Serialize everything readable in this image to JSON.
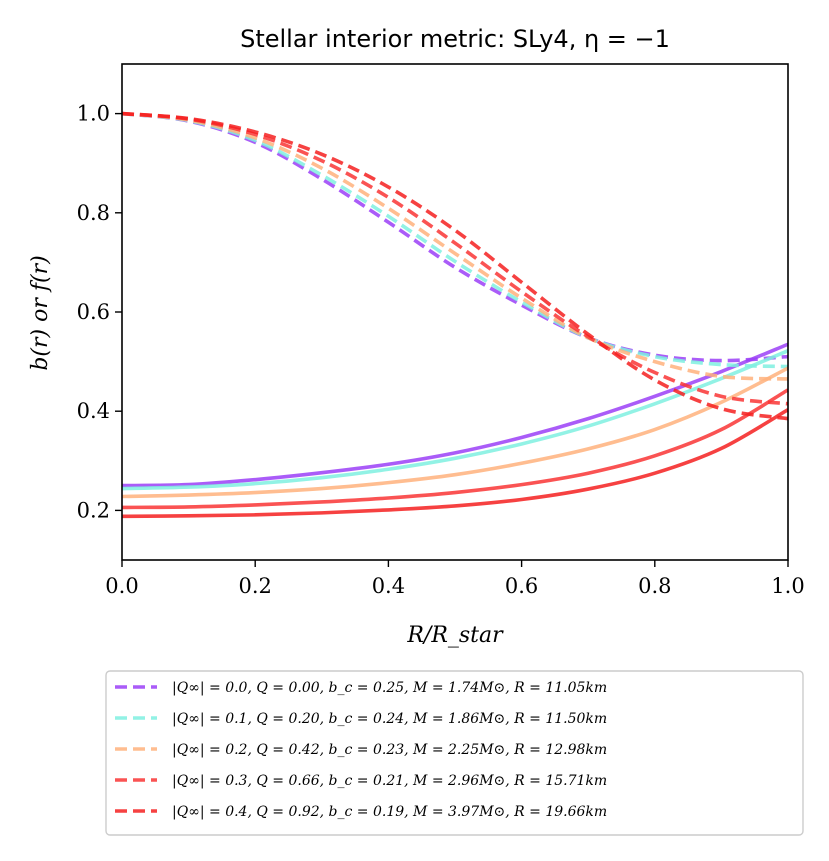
{
  "chart_data": {
    "type": "line",
    "title": "Stellar interior metric: SLy4, η = −1",
    "xlabel": "R/R_star",
    "ylabel": "b(r) or f(r)",
    "xlim": [
      0.0,
      1.0
    ],
    "ylim": [
      0.1,
      1.1
    ],
    "xticks": [
      "0.0",
      "0.2",
      "0.4",
      "0.6",
      "0.8",
      "1.0"
    ],
    "yticks": [
      "0.2",
      "0.4",
      "0.6",
      "0.8",
      "1.0"
    ],
    "legend_location": "below",
    "series": [
      {
        "name": "|Q∞| = 0.0, Q = 0.00, b_c = 0.25, M = 1.74M⊙, R = 11.05km",
        "color": "#9b40f7",
        "x": [
          0,
          0.1,
          0.2,
          0.3,
          0.4,
          0.5,
          0.6,
          0.7,
          0.8,
          0.9,
          1.0
        ],
        "b": [
          0.25,
          0.252,
          0.262,
          0.276,
          0.293,
          0.316,
          0.347,
          0.385,
          0.43,
          0.48,
          0.535
        ],
        "f": [
          1.0,
          0.985,
          0.942,
          0.868,
          0.781,
          0.69,
          0.614,
          0.548,
          0.513,
          0.502,
          0.51
        ]
      },
      {
        "name": "|Q∞| = 0.1, Q = 0.20, b_c = 0.24, M = 1.86M⊙, R = 11.50km",
        "color": "#7ff0e0",
        "x": [
          0,
          0.1,
          0.2,
          0.3,
          0.4,
          0.5,
          0.6,
          0.7,
          0.8,
          0.9,
          1.0
        ],
        "b": [
          0.244,
          0.247,
          0.254,
          0.266,
          0.283,
          0.305,
          0.334,
          0.37,
          0.415,
          0.466,
          0.522
        ],
        "f": [
          1.0,
          0.986,
          0.946,
          0.876,
          0.793,
          0.702,
          0.62,
          0.548,
          0.51,
          0.494,
          0.49
        ]
      },
      {
        "name": "|Q∞| = 0.2, Q = 0.42, b_c = 0.23, M = 2.25M⊙, R = 12.98km",
        "color": "#ffb27d",
        "x": [
          0,
          0.1,
          0.2,
          0.3,
          0.4,
          0.5,
          0.6,
          0.7,
          0.8,
          0.9,
          1.0
        ],
        "b": [
          0.228,
          0.231,
          0.236,
          0.244,
          0.256,
          0.272,
          0.295,
          0.324,
          0.363,
          0.418,
          0.487
        ],
        "f": [
          1.0,
          0.987,
          0.951,
          0.89,
          0.809,
          0.718,
          0.628,
          0.548,
          0.5,
          0.47,
          0.465
        ]
      },
      {
        "name": "|Q∞| = 0.3, Q = 0.66, b_c = 0.21, M = 2.96M⊙, R = 15.71km",
        "color": "#f93535",
        "x": [
          0,
          0.1,
          0.2,
          0.3,
          0.4,
          0.5,
          0.6,
          0.7,
          0.8,
          0.9,
          1.0
        ],
        "b": [
          0.206,
          0.207,
          0.211,
          0.217,
          0.225,
          0.236,
          0.252,
          0.275,
          0.31,
          0.363,
          0.443
        ],
        "f": [
          1.0,
          0.989,
          0.958,
          0.905,
          0.831,
          0.739,
          0.641,
          0.55,
          0.478,
          0.43,
          0.415
        ]
      },
      {
        "name": "|Q∞| = 0.4, Q = 0.92, b_c = 0.19, M = 3.97M⊙, R = 19.66km",
        "color": "#f52020",
        "x": [
          0,
          0.1,
          0.2,
          0.3,
          0.4,
          0.5,
          0.6,
          0.7,
          0.8,
          0.9,
          1.0
        ],
        "b": [
          0.188,
          0.189,
          0.191,
          0.195,
          0.201,
          0.209,
          0.222,
          0.243,
          0.275,
          0.325,
          0.403
        ],
        "f": [
          1.0,
          0.99,
          0.963,
          0.918,
          0.852,
          0.765,
          0.66,
          0.555,
          0.463,
          0.405,
          0.385
        ]
      }
    ]
  }
}
